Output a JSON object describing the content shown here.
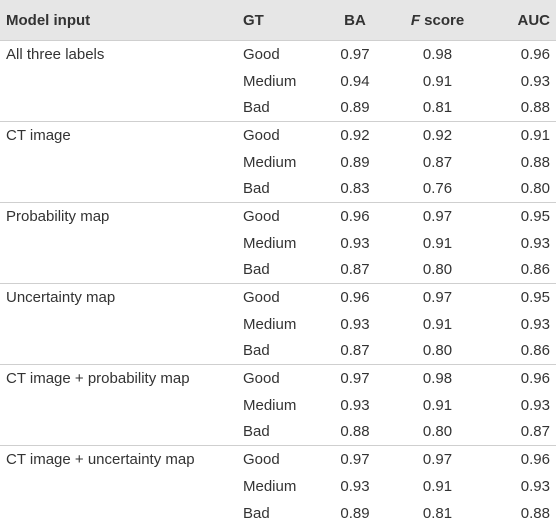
{
  "table": {
    "columns": [
      "Model input",
      "GT",
      "BA",
      "F score",
      "AUC"
    ],
    "groups": [
      {
        "label": "All three labels",
        "rows": [
          [
            "Good",
            "0.97",
            "0.98",
            "0.96"
          ],
          [
            "Medium",
            "0.94",
            "0.91",
            "0.93"
          ],
          [
            "Bad",
            "0.89",
            "0.81",
            "0.88"
          ]
        ]
      },
      {
        "label": "CT image",
        "rows": [
          [
            "Good",
            "0.92",
            "0.92",
            "0.91"
          ],
          [
            "Medium",
            "0.89",
            "0.87",
            "0.88"
          ],
          [
            "Bad",
            "0.83",
            "0.76",
            "0.80"
          ]
        ]
      },
      {
        "label": "Probability map",
        "rows": [
          [
            "Good",
            "0.96",
            "0.97",
            "0.95"
          ],
          [
            "Medium",
            "0.93",
            "0.91",
            "0.93"
          ],
          [
            "Bad",
            "0.87",
            "0.80",
            "0.86"
          ]
        ]
      },
      {
        "label": "Uncertainty map",
        "rows": [
          [
            "Good",
            "0.96",
            "0.97",
            "0.95"
          ],
          [
            "Medium",
            "0.93",
            "0.91",
            "0.93"
          ],
          [
            "Bad",
            "0.87",
            "0.80",
            "0.86"
          ]
        ]
      },
      {
        "label": "CT image + probability map",
        "rows": [
          [
            "Good",
            "0.97",
            "0.98",
            "0.96"
          ],
          [
            "Medium",
            "0.93",
            "0.91",
            "0.93"
          ],
          [
            "Bad",
            "0.88",
            "0.80",
            "0.87"
          ]
        ]
      },
      {
        "label": "CT image + uncertainty map",
        "rows": [
          [
            "Good",
            "0.97",
            "0.97",
            "0.96"
          ],
          [
            "Medium",
            "0.93",
            "0.91",
            "0.93"
          ],
          [
            "Bad",
            "0.89",
            "0.81",
            "0.88"
          ]
        ]
      }
    ]
  }
}
